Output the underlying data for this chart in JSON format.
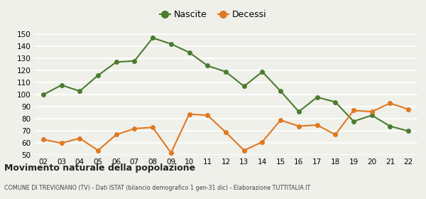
{
  "years": [
    "02",
    "03",
    "04",
    "05",
    "06",
    "07",
    "08",
    "09",
    "10",
    "11",
    "12",
    "13",
    "14",
    "15",
    "16",
    "17",
    "18",
    "19",
    "20",
    "21",
    "22"
  ],
  "nascite": [
    100,
    108,
    103,
    116,
    127,
    128,
    147,
    142,
    135,
    124,
    119,
    107,
    119,
    103,
    86,
    98,
    94,
    78,
    83,
    74,
    70
  ],
  "decessi": [
    63,
    60,
    64,
    54,
    67,
    72,
    73,
    52,
    84,
    83,
    69,
    54,
    61,
    79,
    74,
    75,
    67,
    87,
    86,
    93,
    88
  ],
  "nascite_color": "#4a7c2f",
  "decessi_color": "#e07820",
  "bg_color": "#f0f0eb",
  "grid_color": "#ffffff",
  "title": "Movimento naturale della popolazione",
  "subtitle": "COMUNE DI TREVIGNANO (TV) - Dati ISTAT (bilancio demografico 1 gen-31 dic) - Elaborazione TUTTITALIA.IT",
  "legend_nascite": "Nascite",
  "legend_decessi": "Decessi",
  "ylim": [
    50,
    152
  ],
  "yticks": [
    50,
    60,
    70,
    80,
    90,
    100,
    110,
    120,
    130,
    140,
    150
  ]
}
